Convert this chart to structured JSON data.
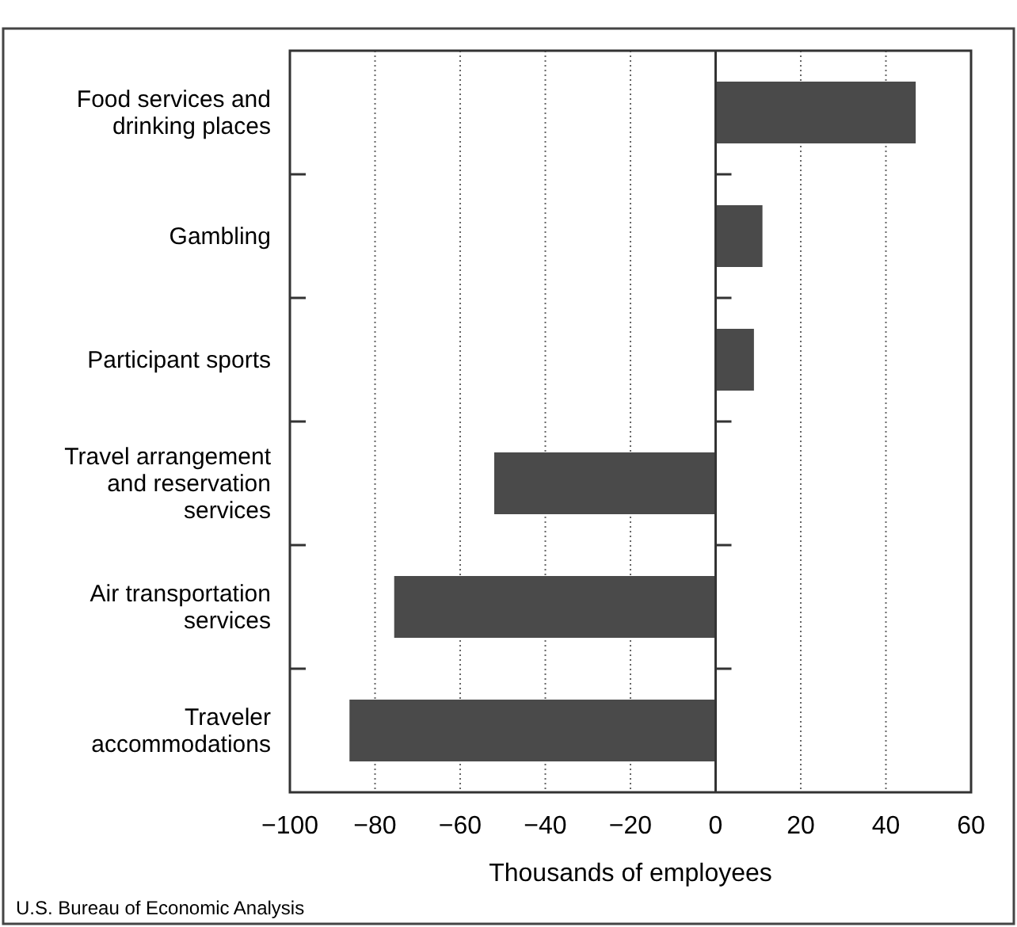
{
  "chart_data": {
    "type": "bar",
    "orientation": "horizontal",
    "categories": [
      "Food services and drinking places",
      "Gambling",
      "Participant sports",
      "Travel arrangement and reservation services",
      "Air transportation services",
      "Traveler accommodations"
    ],
    "values": [
      47,
      11,
      9,
      -52,
      -75.5,
      -86
    ],
    "color": "#4a4a4a",
    "xlim": [
      -100,
      60
    ],
    "xticks": [
      {
        "value": -100,
        "label": "−100"
      },
      {
        "value": -80,
        "label": "−80"
      },
      {
        "value": -60,
        "label": "−60"
      },
      {
        "value": -40,
        "label": "−40"
      },
      {
        "value": -20,
        "label": "−20"
      },
      0,
      20,
      40,
      60
    ],
    "xlabel": "Thousands of employees",
    "grid": "x",
    "annotations": [
      "U.S. Bureau of Economic Analysis"
    ]
  }
}
